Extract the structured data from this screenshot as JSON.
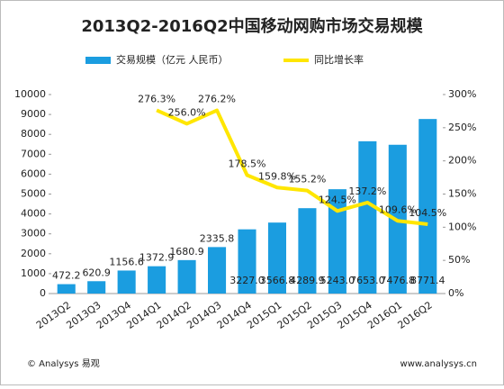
{
  "chart_data": {
    "type": "bar",
    "title": "2013Q2-2016Q2中国移动网购市场交易规模",
    "categories": [
      "2013Q2",
      "2013Q3",
      "2013Q4",
      "2014Q1",
      "2014Q2",
      "2014Q3",
      "2014Q4",
      "2015Q1",
      "2015Q2",
      "2015Q3",
      "2015Q4",
      "2016Q1",
      "2016Q2"
    ],
    "series": [
      {
        "name": "交易规模（亿元 人民币）",
        "type": "bar",
        "color": "#1b9de0",
        "values": [
          472.2,
          620.9,
          1156.6,
          1372.9,
          1680.9,
          2335.8,
          3227.0,
          3566.8,
          4289.9,
          5243.0,
          7653.0,
          7476.8,
          8771.4
        ],
        "value_labels": [
          "472.2",
          "620.9",
          "1156.6",
          "1372.9",
          "1680.9",
          "2335.8",
          "3227.0",
          "3566.8",
          "4289.9",
          "5243.0",
          "7653.0",
          "7476.8",
          "8771.4"
        ]
      },
      {
        "name": "同比增长率",
        "type": "line",
        "axis": "y2",
        "color": "#ffe600",
        "values": [
          null,
          null,
          null,
          276.3,
          256.0,
          276.2,
          178.5,
          159.8,
          155.2,
          124.5,
          137.2,
          109.6,
          104.5
        ],
        "value_labels": [
          null,
          null,
          null,
          "276.3%",
          "256.0%",
          "276.2%",
          "178.5%",
          "159.8%",
          "155.2%",
          "124.5%",
          "137.2%",
          "109.6%",
          "104.5%"
        ]
      }
    ],
    "ylim": [
      0,
      10000
    ],
    "yticks": [
      0,
      1000,
      2000,
      3000,
      4000,
      5000,
      6000,
      7000,
      8000,
      9000,
      10000
    ],
    "y2lim": [
      0,
      300
    ],
    "y2ticks": [
      {
        "value": 0,
        "label": "0%"
      },
      {
        "value": 50,
        "label": "50%"
      },
      {
        "value": 100,
        "label": "100%"
      },
      {
        "value": 150,
        "label": "150%"
      },
      {
        "value": 200,
        "label": "200%"
      },
      {
        "value": 250,
        "label": "250%"
      },
      {
        "value": 300,
        "label": "300%"
      }
    ],
    "footer_left": "© Analysys 易观",
    "footer_right": "www.analysys.cn"
  }
}
